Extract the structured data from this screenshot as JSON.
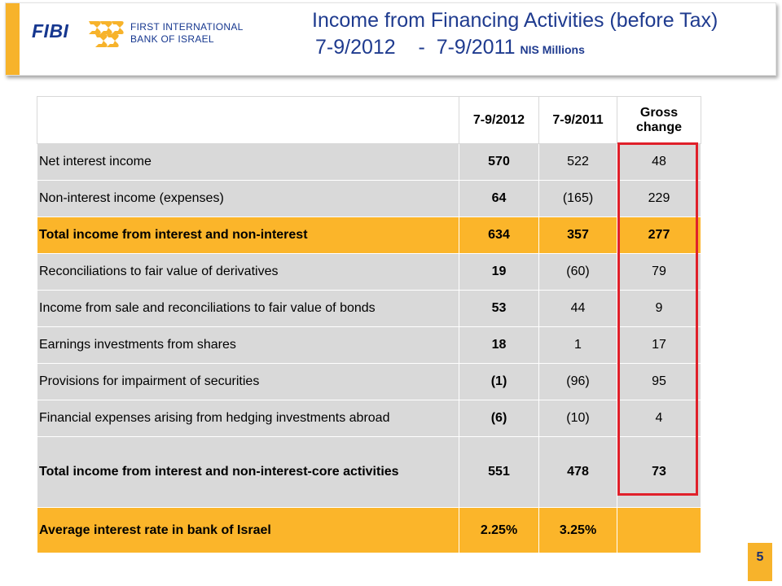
{
  "header": {
    "logo": "FIBI",
    "bank_name_line1": "FIRST INTERNATIONAL",
    "bank_name_line2": "BANK OF ISRAEL",
    "title_line1": "Income from Financing Activities (before Tax)",
    "title_line2": "7-9/2012    -  7-9/2011",
    "unit": "NIS Millions"
  },
  "table": {
    "columns": [
      "",
      "7-9/2012",
      "7-9/2011",
      "Gross change"
    ],
    "rows": [
      {
        "label": "Net interest income",
        "v2012": "570",
        "v2011": "522",
        "change": "48"
      },
      {
        "label": "Non-interest income (expenses)",
        "v2012": "64",
        "v2011": "(165)",
        "change": "229"
      },
      {
        "label": "Total income from interest and non-interest",
        "v2012": "634",
        "v2011": "357",
        "change": "277"
      },
      {
        "label": "Reconciliations to fair value of derivatives",
        "v2012": "19",
        "v2011": "(60)",
        "change": "79"
      },
      {
        "label": "Income from sale and reconciliations to fair value of bonds",
        "v2012": "53",
        "v2011": "44",
        "change": "9"
      },
      {
        "label": "Earnings investments from shares",
        "v2012": "18",
        "v2011": "1",
        "change": "17"
      },
      {
        "label": "Provisions for impairment of securities",
        "v2012": "(1)",
        "v2011": "(96)",
        "change": "95"
      },
      {
        "label": "Financial expenses arising from hedging investments abroad",
        "v2012": "(6)",
        "v2011": "(10)",
        "change": "4"
      },
      {
        "label": "Total income from interest and non-interest-core activities",
        "v2012": "551",
        "v2011": "478",
        "change": "73"
      },
      {
        "label": "Average interest rate in bank of Israel",
        "v2012": "2.25%",
        "v2011": "3.25%",
        "change": ""
      }
    ]
  },
  "page_number": "5",
  "colors": {
    "accent": "#f7b32b",
    "brand_blue": "#16378f",
    "highlight_red": "#e0202a",
    "row_grey": "#d9d9d9"
  }
}
